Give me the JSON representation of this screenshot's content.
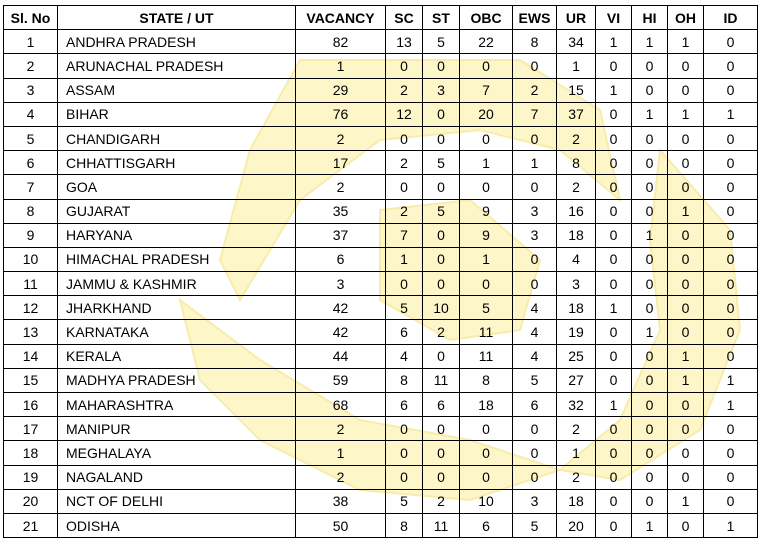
{
  "headers": [
    "Sl. No",
    "STATE / UT",
    "VACANCY",
    "SC",
    "ST",
    "OBC",
    "EWS",
    "UR",
    "VI",
    "HI",
    "OH",
    "ID"
  ],
  "rows": [
    [
      "1",
      "ANDHRA PRADESH",
      "82",
      "13",
      "5",
      "22",
      "8",
      "34",
      "1",
      "1",
      "1",
      "0"
    ],
    [
      "2",
      "ARUNACHAL PRADESH",
      "1",
      "0",
      "0",
      "0",
      "0",
      "1",
      "0",
      "0",
      "0",
      "0"
    ],
    [
      "3",
      "ASSAM",
      "29",
      "2",
      "3",
      "7",
      "2",
      "15",
      "1",
      "0",
      "0",
      "0"
    ],
    [
      "4",
      "BIHAR",
      "76",
      "12",
      "0",
      "20",
      "7",
      "37",
      "0",
      "1",
      "1",
      "1"
    ],
    [
      "5",
      "CHANDIGARH",
      "2",
      "0",
      "0",
      "0",
      "0",
      "2",
      "0",
      "0",
      "0",
      "0"
    ],
    [
      "6",
      "CHHATTISGARH",
      "17",
      "2",
      "5",
      "1",
      "1",
      "8",
      "0",
      "0",
      "0",
      "0"
    ],
    [
      "7",
      "GOA",
      "2",
      "0",
      "0",
      "0",
      "0",
      "2",
      "0",
      "0",
      "0",
      "0"
    ],
    [
      "8",
      "GUJARAT",
      "35",
      "2",
      "5",
      "9",
      "3",
      "16",
      "0",
      "0",
      "1",
      "0"
    ],
    [
      "9",
      "HARYANA",
      "37",
      "7",
      "0",
      "9",
      "3",
      "18",
      "0",
      "1",
      "0",
      "0"
    ],
    [
      "10",
      "HIMACHAL PRADESH",
      "6",
      "1",
      "0",
      "1",
      "0",
      "4",
      "0",
      "0",
      "0",
      "0"
    ],
    [
      "11",
      "JAMMU & KASHMIR",
      "3",
      "0",
      "0",
      "0",
      "0",
      "3",
      "0",
      "0",
      "0",
      "0"
    ],
    [
      "12",
      "JHARKHAND",
      "42",
      "5",
      "10",
      "5",
      "4",
      "18",
      "1",
      "0",
      "0",
      "0"
    ],
    [
      "13",
      "KARNATAKA",
      "42",
      "6",
      "2",
      "11",
      "4",
      "19",
      "0",
      "1",
      "0",
      "0"
    ],
    [
      "14",
      "KERALA",
      "44",
      "4",
      "0",
      "11",
      "4",
      "25",
      "0",
      "0",
      "1",
      "0"
    ],
    [
      "15",
      "MADHYA PRADESH",
      "59",
      "8",
      "11",
      "8",
      "5",
      "27",
      "0",
      "0",
      "1",
      "1"
    ],
    [
      "16",
      "MAHARASHTRA",
      "68",
      "6",
      "6",
      "18",
      "6",
      "32",
      "1",
      "0",
      "0",
      "1"
    ],
    [
      "17",
      "MANIPUR",
      "2",
      "0",
      "0",
      "0",
      "0",
      "2",
      "0",
      "0",
      "0",
      "0"
    ],
    [
      "18",
      "MEGHALAYA",
      "1",
      "0",
      "0",
      "0",
      "0",
      "1",
      "0",
      "0",
      "0",
      "0"
    ],
    [
      "19",
      "NAGALAND",
      "2",
      "0",
      "0",
      "0",
      "0",
      "2",
      "0",
      "0",
      "0",
      "0"
    ],
    [
      "20",
      "NCT OF DELHI",
      "38",
      "5",
      "2",
      "10",
      "3",
      "18",
      "0",
      "0",
      "1",
      "0"
    ],
    [
      "21",
      "ODISHA",
      "50",
      "8",
      "11",
      "6",
      "5",
      "20",
      "0",
      "1",
      "0",
      "1"
    ]
  ],
  "colors": {
    "watermark": "#fdf6c8",
    "watermark_edge": "#f8ecaa",
    "border": "#000000"
  }
}
